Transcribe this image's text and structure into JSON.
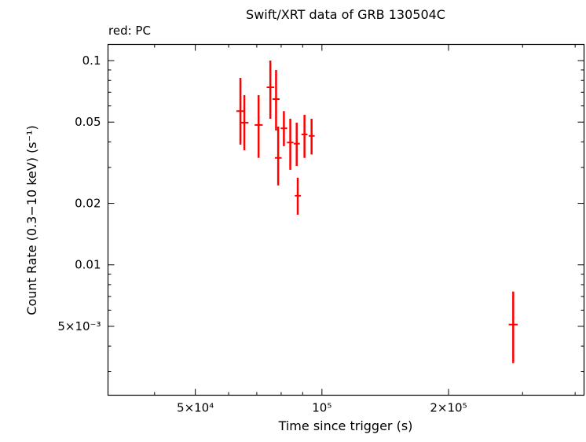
{
  "figure": {
    "title": "Swift/XRT data of GRB 130504C",
    "mode_label": "red: PC",
    "x_label": "Time since trigger (s)",
    "y_label": "Count Rate (0.3−10 keV) (s⁻¹)",
    "background_color": "#ffffff",
    "frame_color": "#000000",
    "pc_color": "#ff0000"
  },
  "chart_data": {
    "type": "scatter",
    "title": "Swift/XRT data of GRB 130504C",
    "xlabel": "Time since trigger (s)",
    "ylabel": "Count Rate (0.3−10 keV) (s⁻¹)",
    "xscale": "log",
    "yscale": "log",
    "xlim": [
      31000,
      420000
    ],
    "ylim": [
      0.0023,
      0.12
    ],
    "grid": false,
    "legend": "none",
    "x_ticks": [
      {
        "value": 50000,
        "label": "5×10⁴"
      },
      {
        "value": 100000,
        "label": "10⁵"
      },
      {
        "value": 200000,
        "label": "2×10⁵"
      }
    ],
    "x_minor_ticks": [
      40000,
      60000,
      70000,
      80000,
      90000,
      300000,
      400000
    ],
    "y_ticks": [
      {
        "value": 0.1,
        "label": "0.1"
      },
      {
        "value": 0.05,
        "label": "0.05"
      },
      {
        "value": 0.02,
        "label": "0.02"
      },
      {
        "value": 0.01,
        "label": "0.01"
      },
      {
        "value": 0.005,
        "label": "5×10⁻³"
      }
    ],
    "y_minor_ticks": [
      0.003,
      0.004,
      0.006,
      0.007,
      0.008,
      0.009,
      0.03,
      0.04,
      0.06,
      0.07,
      0.08,
      0.09
    ],
    "series": [
      {
        "name": "PC",
        "color": "#ff0000",
        "points": [
          {
            "t": 64000,
            "t_lo": 62600,
            "t_hi": 65500,
            "rate": 0.0566,
            "rate_lo": 0.0388,
            "rate_hi": 0.0823
          },
          {
            "t": 65400,
            "t_lo": 64000,
            "t_hi": 66900,
            "rate": 0.0497,
            "rate_lo": 0.0364,
            "rate_hi": 0.0677
          },
          {
            "t": 70700,
            "t_lo": 69200,
            "t_hi": 72300,
            "rate": 0.0484,
            "rate_lo": 0.0334,
            "rate_hi": 0.0677
          },
          {
            "t": 75400,
            "t_lo": 73900,
            "t_hi": 77000,
            "rate": 0.074,
            "rate_lo": 0.0519,
            "rate_hi": 0.1
          },
          {
            "t": 77800,
            "t_lo": 76300,
            "t_hi": 79300,
            "rate": 0.0648,
            "rate_lo": 0.0455,
            "rate_hi": 0.09
          },
          {
            "t": 78700,
            "t_lo": 77300,
            "t_hi": 80200,
            "rate": 0.0334,
            "rate_lo": 0.0245,
            "rate_hi": 0.0475
          },
          {
            "t": 81200,
            "t_lo": 79800,
            "t_hi": 82700,
            "rate": 0.0466,
            "rate_lo": 0.0381,
            "rate_hi": 0.0566
          },
          {
            "t": 84100,
            "t_lo": 82600,
            "t_hi": 85600,
            "rate": 0.0397,
            "rate_lo": 0.0292,
            "rate_hi": 0.0519
          },
          {
            "t": 87100,
            "t_lo": 85700,
            "t_hi": 88600,
            "rate": 0.0392,
            "rate_lo": 0.0305,
            "rate_hi": 0.0497
          },
          {
            "t": 87600,
            "t_lo": 86200,
            "t_hi": 89100,
            "rate": 0.0218,
            "rate_lo": 0.0176,
            "rate_hi": 0.0267
          },
          {
            "t": 90900,
            "t_lo": 89400,
            "t_hi": 92400,
            "rate": 0.0435,
            "rate_lo": 0.0334,
            "rate_hi": 0.0543
          },
          {
            "t": 94500,
            "t_lo": 93000,
            "t_hi": 96100,
            "rate": 0.0428,
            "rate_lo": 0.0347,
            "rate_hi": 0.0519
          },
          {
            "t": 285000,
            "t_lo": 278000,
            "t_hi": 292000,
            "rate": 0.0051,
            "rate_lo": 0.0033,
            "rate_hi": 0.0074
          }
        ]
      }
    ]
  }
}
